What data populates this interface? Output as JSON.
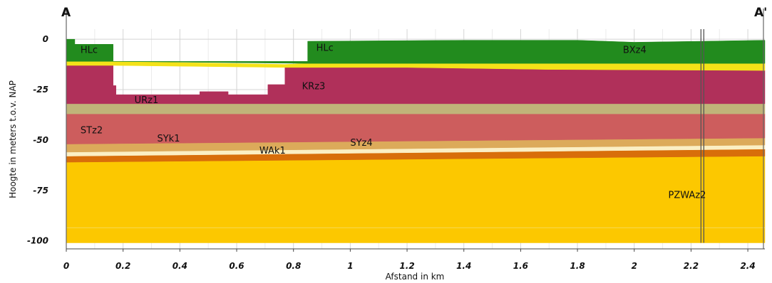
{
  "chart_data": {
    "type": "area",
    "title": "",
    "corner_labels": {
      "left": "A",
      "right": "A'"
    },
    "xlabel": "Afstand in km",
    "ylabel": "Hoogte in meters t.o.v. NAP",
    "xlim": [
      0,
      2.46
    ],
    "ylim": [
      -104,
      5
    ],
    "x_ticks": [
      "0",
      "0.2",
      "0.4",
      "0.6",
      "0.8",
      "1",
      "1.2",
      "1.4",
      "1.6",
      "1.8",
      "2",
      "2.2",
      "2.4"
    ],
    "x_tick_values": [
      0,
      0.2,
      0.4,
      0.6,
      0.8,
      1.0,
      1.2,
      1.4,
      1.6,
      1.8,
      2.0,
      2.2,
      2.4
    ],
    "y_ticks": [
      "0",
      "-25",
      "-50",
      "-75",
      "-100"
    ],
    "y_tick_values": [
      0,
      -25,
      -50,
      -75,
      -100
    ],
    "grid": true,
    "boreholes_x": [
      2.235,
      2.245
    ],
    "layers": [
      {
        "unit": "base",
        "color": "#fcc800",
        "top": [
          [
            0,
            -61
          ],
          [
            2.46,
            -58
          ]
        ],
        "bottom": [
          [
            0,
            -101
          ],
          [
            2.46,
            -101
          ]
        ]
      },
      {
        "unit": "orange",
        "color": "#d86e0a",
        "top": [
          [
            0,
            -58
          ],
          [
            2.46,
            -54.5
          ]
        ],
        "bottom": [
          [
            0,
            -61
          ],
          [
            2.46,
            -58
          ]
        ]
      },
      {
        "unit": "cream",
        "color": "#fbefc4",
        "top": [
          [
            0,
            -56
          ],
          [
            2.46,
            -52.5
          ]
        ],
        "bottom": [
          [
            0,
            -58
          ],
          [
            2.46,
            -54.5
          ]
        ]
      },
      {
        "unit": "tan",
        "color": "#dcaa5a",
        "top": [
          [
            0,
            -52
          ],
          [
            2.46,
            -49
          ]
        ],
        "bottom": [
          [
            0,
            -56
          ],
          [
            2.46,
            -52.5
          ]
        ]
      },
      {
        "unit": "salmon",
        "color": "#cd5d5d",
        "top": [
          [
            0,
            -37
          ],
          [
            2.46,
            -37
          ]
        ],
        "bottom": [
          [
            0,
            -52
          ],
          [
            2.46,
            -49
          ]
        ]
      },
      {
        "unit": "olive",
        "color": "#c0b479",
        "top": [
          [
            0,
            -32
          ],
          [
            2.46,
            -32
          ]
        ],
        "bottom": [
          [
            0,
            -37
          ],
          [
            2.46,
            -37
          ]
        ]
      },
      {
        "unit": "KRz",
        "color": "#b0305a",
        "top": [
          [
            0,
            -13
          ],
          [
            0.165,
            -13
          ],
          [
            0.165,
            -23
          ],
          [
            0.175,
            -23
          ],
          [
            0.175,
            -27.5
          ],
          [
            0.47,
            -27.5
          ],
          [
            0.47,
            -26
          ],
          [
            0.57,
            -26
          ],
          [
            0.57,
            -27.5
          ],
          [
            0.71,
            -27.5
          ],
          [
            0.71,
            -22.5
          ],
          [
            0.77,
            -22.5
          ],
          [
            0.77,
            -14
          ],
          [
            1.2,
            -14
          ],
          [
            1.7,
            -15
          ],
          [
            2.46,
            -15.5
          ]
        ],
        "bottom": [
          [
            0,
            -32
          ],
          [
            2.46,
            -32
          ]
        ]
      },
      {
        "unit": "yellow",
        "color": "#f4e218",
        "top": [
          [
            0,
            -11
          ],
          [
            0.165,
            -11
          ],
          [
            0.77,
            -12.5
          ],
          [
            0.85,
            -12
          ],
          [
            2.46,
            -12
          ]
        ],
        "bottom": [
          [
            0,
            -13
          ],
          [
            0.165,
            -13
          ],
          [
            0.77,
            -14
          ],
          [
            1.2,
            -14
          ],
          [
            1.7,
            -15
          ],
          [
            2.46,
            -15.5
          ]
        ]
      },
      {
        "unit": "HLc/BXz",
        "color": "#228b1e",
        "top": [
          [
            0,
            0
          ],
          [
            0.03,
            0
          ],
          [
            0.03,
            -2.5
          ],
          [
            0.165,
            -2.5
          ],
          [
            0.165,
            -11
          ],
          [
            0.85,
            -11
          ],
          [
            0.85,
            -1
          ],
          [
            1.4,
            -0.5
          ],
          [
            1.8,
            -0.5
          ],
          [
            2.0,
            -1.5
          ],
          [
            2.24,
            -1
          ],
          [
            2.46,
            -0.5
          ]
        ],
        "bottom": [
          [
            0,
            -11
          ],
          [
            0.165,
            -11
          ],
          [
            0.85,
            -12
          ],
          [
            2.46,
            -12
          ]
        ]
      }
    ],
    "annotations": [
      {
        "text": "HLc",
        "x": 0.05,
        "y": -5
      },
      {
        "text": "HLc",
        "x": 0.88,
        "y": -4
      },
      {
        "text": "BXz4",
        "x": 1.96,
        "y": -5
      },
      {
        "text": "URz1",
        "x": 0.24,
        "y": -30
      },
      {
        "text": "KRz3",
        "x": 0.83,
        "y": -23
      },
      {
        "text": "STz2",
        "x": 0.05,
        "y": -45
      },
      {
        "text": "SYk1",
        "x": 0.32,
        "y": -49
      },
      {
        "text": "SYz4",
        "x": 1.0,
        "y": -51
      },
      {
        "text": "WAk1",
        "x": 0.68,
        "y": -55
      },
      {
        "text": "PZWAz2",
        "x": 2.12,
        "y": -77
      }
    ]
  }
}
